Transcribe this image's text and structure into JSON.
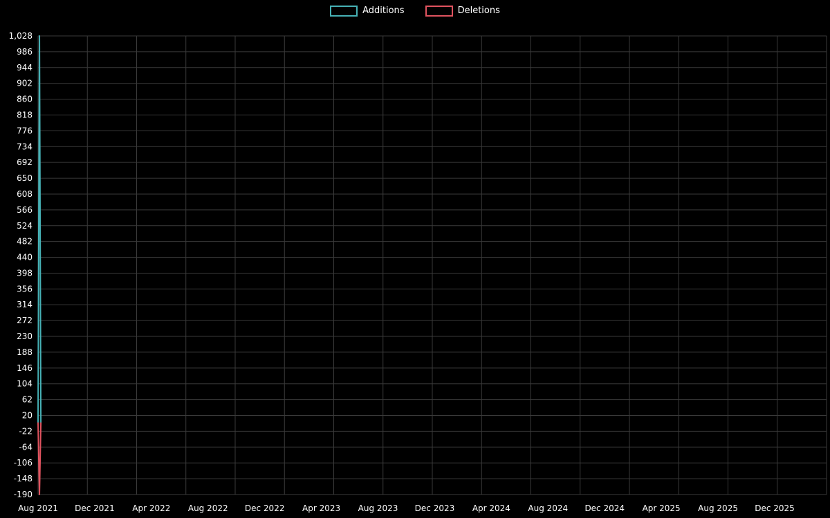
{
  "legend": {
    "items": [
      {
        "label": "Additions",
        "color": "#46b1b5"
      },
      {
        "label": "Deletions",
        "color": "#e0535f"
      }
    ]
  },
  "chart_data": {
    "type": "line",
    "title": "",
    "xlabel": "",
    "ylabel": "",
    "background": "#000000",
    "grid": true,
    "grid_color": "#3a3a3a",
    "text_color": "#ffffff",
    "legend_position": "top-center",
    "ylim": [
      -190,
      1028
    ],
    "y_tick_step": 42,
    "y_tick_values": [
      1028,
      986,
      944,
      902,
      860,
      818,
      776,
      734,
      692,
      650,
      608,
      566,
      524,
      482,
      440,
      398,
      356,
      314,
      272,
      230,
      188,
      146,
      104,
      62,
      20,
      -22,
      -64,
      -106,
      -148,
      -190
    ],
    "y_tick_labels": [
      "1,028",
      "986",
      "944",
      "902",
      "860",
      "818",
      "776",
      "734",
      "692",
      "650",
      "608",
      "566",
      "524",
      "482",
      "440",
      "398",
      "356",
      "314",
      "272",
      "230",
      "188",
      "146",
      "104",
      "62",
      "20",
      "-22",
      "-64",
      "-106",
      "-148",
      "-190"
    ],
    "x_tick_labels": [
      "Aug 2021",
      "Dec 2021",
      "Apr 2022",
      "Aug 2022",
      "Dec 2022",
      "Apr 2023",
      "Aug 2023",
      "Dec 2023",
      "Apr 2024",
      "Aug 2024",
      "Dec 2024",
      "Apr 2025",
      "Aug 2025",
      "Dec 2025"
    ],
    "x_months_per_label": 4,
    "series": [
      {
        "name": "Additions",
        "color": "#46b1b5",
        "points": [
          {
            "x": 0,
            "y": 0
          },
          {
            "x": 0.1,
            "y": 1028
          },
          {
            "x": 0.2,
            "y": 0
          }
        ]
      },
      {
        "name": "Deletions",
        "color": "#e0535f",
        "points": [
          {
            "x": 0,
            "y": 0
          },
          {
            "x": 0.1,
            "y": -190
          },
          {
            "x": 0.2,
            "y": 0
          }
        ]
      }
    ]
  }
}
